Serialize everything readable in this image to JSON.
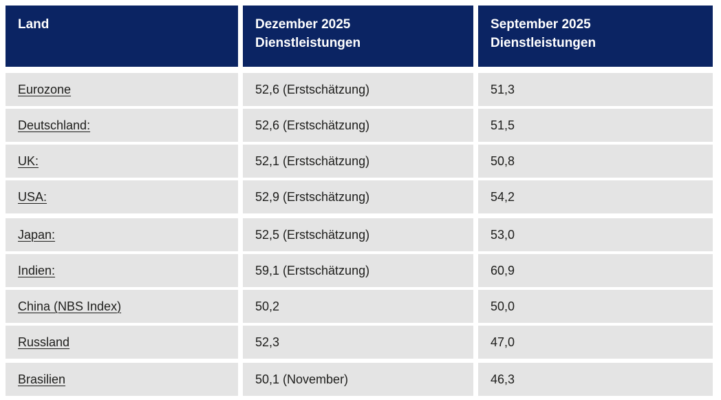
{
  "colors": {
    "header_bg": "#0b2463",
    "header_text": "#ffffff",
    "row_bg": "#e4e4e4",
    "page_bg": "#ffffff",
    "body_text": "#1d1d1b"
  },
  "chart_data": {
    "type": "table",
    "columns": [
      "Land",
      "Dezember 2025\nDienstleistungen",
      "September 2025\nDienstleistungen"
    ],
    "rows": [
      {
        "country": "Eurozone",
        "december": "52,6 (Erstschätzung)",
        "september": "51,3"
      },
      {
        "country": "Deutschland:",
        "december": "52,6 (Erstschätzung)",
        "september": "51,5"
      },
      {
        "country": "UK:",
        "december": "52,1 (Erstschätzung)",
        "september": "50,8"
      },
      {
        "country": "USA:",
        "december": "52,9 (Erstschätzung)",
        "september": "54,2"
      },
      {
        "country": "Japan:",
        "december": "52,5 (Erstschätzung)",
        "september": "53,0"
      },
      {
        "country": "Indien:",
        "december": "59,1 (Erstschätzung)",
        "september": "60,9"
      },
      {
        "country": "China (NBS Index)",
        "december": "50,2",
        "september": "50,0"
      },
      {
        "country": "Russland",
        "december": "52,3",
        "september": "47,0"
      },
      {
        "country": "Brasilien",
        "december": "50,1 (November)",
        "september": "46,3"
      }
    ]
  }
}
